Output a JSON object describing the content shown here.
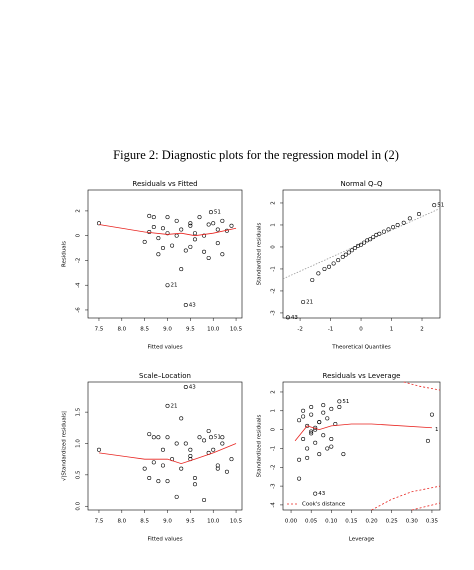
{
  "caption": "Figure 2: Diagnostic plots for the regression model in (2)",
  "chart_data": [
    {
      "type": "scatter",
      "title": "Residuals vs Fitted",
      "x_label": "Fitted values",
      "y_label": "Residuals",
      "xlim": [
        7.26,
        10.63
      ],
      "ylim": [
        -6.65,
        3.69
      ],
      "xticks": [
        7.5,
        {
          "value": 8,
          "label": "8.0"
        },
        8.5,
        {
          "value": 9,
          "label": "9.0"
        },
        9.5,
        {
          "value": 10,
          "label": "10.0"
        },
        10.5
      ],
      "yticks": [
        -6,
        -4,
        -2,
        0,
        2
      ],
      "series": [
        {
          "kind": "points",
          "color": "#000000",
          "x": [
            7.5,
            8.5,
            8.6,
            8.7,
            8.8,
            8.9,
            9.0,
            9.1,
            9.2,
            9.3,
            9.4,
            9.5,
            9.6,
            9.7,
            9.8,
            9.9,
            10.0,
            10.1,
            10.2,
            10.3,
            10.4,
            8.6,
            8.9,
            9.2,
            9.5,
            9.8,
            10.1,
            8.8,
            9.0,
            9.3,
            9.6,
            9.9,
            10.2,
            9.0,
            9.4,
            9.95,
            8.7,
            9.5
          ],
          "values": [
            1.0,
            -0.5,
            0.3,
            1.5,
            -1.5,
            0.6,
            0.2,
            -0.8,
            1.2,
            0.5,
            -1.2,
            0.8,
            -0.3,
            1.5,
            0.0,
            -1.8,
            1.0,
            -0.6,
            1.2,
            0.4,
            0.8,
            1.6,
            -1.0,
            0.0,
            1.0,
            -1.3,
            0.5,
            -0.2,
            1.5,
            -2.7,
            0.2,
            0.9,
            -1.5,
            -4.0,
            -5.6,
            1.9,
            0.7,
            -0.9
          ]
        },
        {
          "kind": "line",
          "color": "#e8231f",
          "x": [
            7.5,
            8.0,
            8.5,
            9.0,
            9.3,
            9.6,
            10.0,
            10.5
          ],
          "values": [
            0.9,
            0.6,
            0.3,
            0.1,
            0.2,
            0.0,
            0.2,
            0.6
          ]
        }
      ],
      "annotations": [
        {
          "text": "51",
          "x": 9.95,
          "y": 1.9
        },
        {
          "text": "21",
          "x": 9.0,
          "y": -4.0
        },
        {
          "text": "43",
          "x": 9.4,
          "y": -5.6
        }
      ]
    },
    {
      "type": "scatter",
      "title": "Normal Q–Q",
      "x_label": "Theoretical Quantiles",
      "y_label": "Standardized residuals",
      "xlim": [
        -2.56,
        2.59
      ],
      "ylim": [
        -3.23,
        2.59
      ],
      "xticks": [
        -2,
        -1,
        0,
        1,
        2
      ],
      "yticks": [
        -3,
        -2,
        -1,
        0,
        1,
        2
      ],
      "series": [
        {
          "kind": "line",
          "color": "#999999",
          "dash": "1.5,1.5",
          "x": [
            -2.56,
            2.59
          ],
          "values": [
            -1.45,
            1.75
          ]
        },
        {
          "kind": "points",
          "color": "#000000",
          "x": [
            -2.4,
            -1.9,
            -1.6,
            -1.4,
            -1.2,
            -1.05,
            -0.9,
            -0.75,
            -0.6,
            -0.5,
            -0.4,
            -0.3,
            -0.2,
            -0.1,
            0,
            0.1,
            0.2,
            0.3,
            0.4,
            0.5,
            0.6,
            0.75,
            0.9,
            1.05,
            1.2,
            1.4,
            1.6,
            1.9,
            2.4
          ],
          "values": [
            -3.2,
            -2.5,
            -1.5,
            -1.2,
            -1.0,
            -0.9,
            -0.75,
            -0.6,
            -0.45,
            -0.35,
            -0.25,
            -0.15,
            -0.05,
            0.05,
            0.1,
            0.2,
            0.3,
            0.35,
            0.45,
            0.55,
            0.6,
            0.7,
            0.8,
            0.9,
            1.0,
            1.1,
            1.3,
            1.5,
            1.9
          ]
        }
      ],
      "annotations": [
        {
          "text": "51",
          "x": 2.4,
          "y": 1.9
        },
        {
          "text": "21",
          "x": -1.9,
          "y": -2.5
        },
        {
          "text": "43",
          "x": -2.4,
          "y": -3.2
        }
      ]
    },
    {
      "type": "scatter",
      "title": "Scale–Location",
      "x_label": "Fitted values",
      "y_label": "√|Standardized residuals|",
      "xlim": [
        7.26,
        10.63
      ],
      "ylim": [
        -0.06,
        1.98
      ],
      "xticks": [
        7.5,
        {
          "value": 8,
          "label": "8.0"
        },
        8.5,
        {
          "value": 9,
          "label": "9.0"
        },
        9.5,
        {
          "value": 10,
          "label": "10.0"
        },
        10.5
      ],
      "yticks": [
        {
          "value": 0,
          "label": "0.0"
        },
        0.5,
        {
          "value": 1,
          "label": "1.0"
        },
        1.5
      ],
      "series": [
        {
          "kind": "points",
          "color": "#000000",
          "x": [
            7.5,
            8.5,
            8.6,
            8.7,
            8.8,
            8.9,
            9.0,
            9.1,
            9.2,
            9.3,
            9.4,
            9.5,
            9.6,
            9.7,
            9.8,
            9.9,
            10.0,
            10.1,
            10.2,
            10.3,
            10.4,
            8.6,
            8.9,
            9.2,
            9.5,
            9.8,
            10.1,
            8.8,
            9.0,
            9.3,
            9.6,
            9.9,
            10.2,
            9.0,
            9.4,
            9.95,
            8.7,
            9.5
          ],
          "values": [
            0.9,
            0.6,
            0.45,
            1.1,
            1.1,
            0.65,
            0.4,
            0.75,
            1.0,
            0.6,
            1.0,
            0.75,
            0.45,
            1.1,
            0.1,
            1.2,
            0.9,
            0.65,
            1.0,
            0.55,
            0.75,
            1.15,
            0.9,
            0.15,
            0.9,
            1.05,
            0.6,
            0.4,
            1.1,
            1.4,
            0.35,
            0.85,
            1.1,
            1.6,
            1.9,
            1.1,
            0.7,
            0.8
          ]
        },
        {
          "kind": "line",
          "color": "#e8231f",
          "x": [
            7.5,
            8.5,
            9.0,
            9.3,
            9.6,
            10.0,
            10.5
          ],
          "values": [
            0.85,
            0.75,
            0.75,
            0.68,
            0.75,
            0.85,
            1.0
          ]
        }
      ],
      "annotations": [
        {
          "text": "43",
          "x": 9.4,
          "y": 1.9
        },
        {
          "text": "21",
          "x": 9.0,
          "y": 1.6
        },
        {
          "text": "51",
          "x": 9.95,
          "y": 1.1
        }
      ]
    },
    {
      "type": "scatter",
      "title": "Residuals vs Leverage",
      "x_label": "Leverage",
      "y_label": "Standardized residuals",
      "xlim": [
        -0.02,
        0.37
      ],
      "ylim": [
        -4.27,
        2.53
      ],
      "xticks": [
        {
          "value": 0,
          "label": "0.00"
        },
        0.05,
        {
          "value": 0.1,
          "label": "0.10"
        },
        0.15,
        {
          "value": 0.2,
          "label": "0.20"
        },
        0.25,
        {
          "value": 0.3,
          "label": "0.30"
        },
        0.35
      ],
      "yticks": [
        -4,
        -3,
        -2,
        -1,
        0,
        1,
        2
      ],
      "legend": "bottom-left",
      "series": [
        {
          "kind": "points",
          "color": "#000000",
          "x": [
            0.02,
            0.03,
            0.03,
            0.04,
            0.04,
            0.05,
            0.05,
            0.05,
            0.06,
            0.06,
            0.07,
            0.07,
            0.08,
            0.08,
            0.09,
            0.09,
            0.1,
            0.1,
            0.11,
            0.12,
            0.13,
            0.02,
            0.04,
            0.06,
            0.08,
            0.1,
            0.03,
            0.05,
            0.07,
            0.35,
            0.34,
            0.06,
            0.12,
            0.02
          ],
          "values": [
            0.5,
            -0.5,
            1.0,
            0.2,
            -1.0,
            0.8,
            -0.2,
            1.2,
            0.0,
            -0.7,
            0.4,
            -1.3,
            0.9,
            -0.3,
            0.6,
            -1.0,
            1.1,
            -0.5,
            0.3,
            1.5,
            -1.3,
            -2.6,
            -1.5,
            0.1,
            1.3,
            -0.9,
            0.7,
            -0.1,
            0.4,
            0.8,
            -0.6,
            -3.4,
            1.2,
            -1.6
          ]
        },
        {
          "kind": "line",
          "color": "#e8231f",
          "x": [
            0.01,
            0.04,
            0.07,
            0.1,
            0.15,
            0.2,
            0.35
          ],
          "values": [
            -0.6,
            0.2,
            0.0,
            0.2,
            0.3,
            0.3,
            0.1
          ]
        },
        {
          "kind": "line",
          "name": "Cook's distance",
          "color": "#e8231f",
          "dash": "2,2",
          "x": [
            0.2,
            0.25,
            0.3,
            0.37
          ],
          "values": [
            -4.27,
            -3.7,
            -3.3,
            -3.0
          ]
        },
        {
          "kind": "line",
          "color": "#e8231f",
          "dash": "2,2",
          "x": [
            0.3,
            0.37
          ],
          "values": [
            -4.27,
            -3.9
          ]
        },
        {
          "kind": "line",
          "color": "#e8231f",
          "dash": "2,2",
          "x": [
            0.28,
            0.32,
            0.37
          ],
          "values": [
            2.53,
            2.3,
            2.1
          ]
        }
      ],
      "annotations": [
        {
          "text": "51",
          "x": 0.12,
          "y": 1.5
        },
        {
          "text": "43",
          "x": 0.06,
          "y": -3.4
        },
        {
          "text": "1",
          "x": 0.35,
          "y": 0.0
        }
      ]
    }
  ]
}
